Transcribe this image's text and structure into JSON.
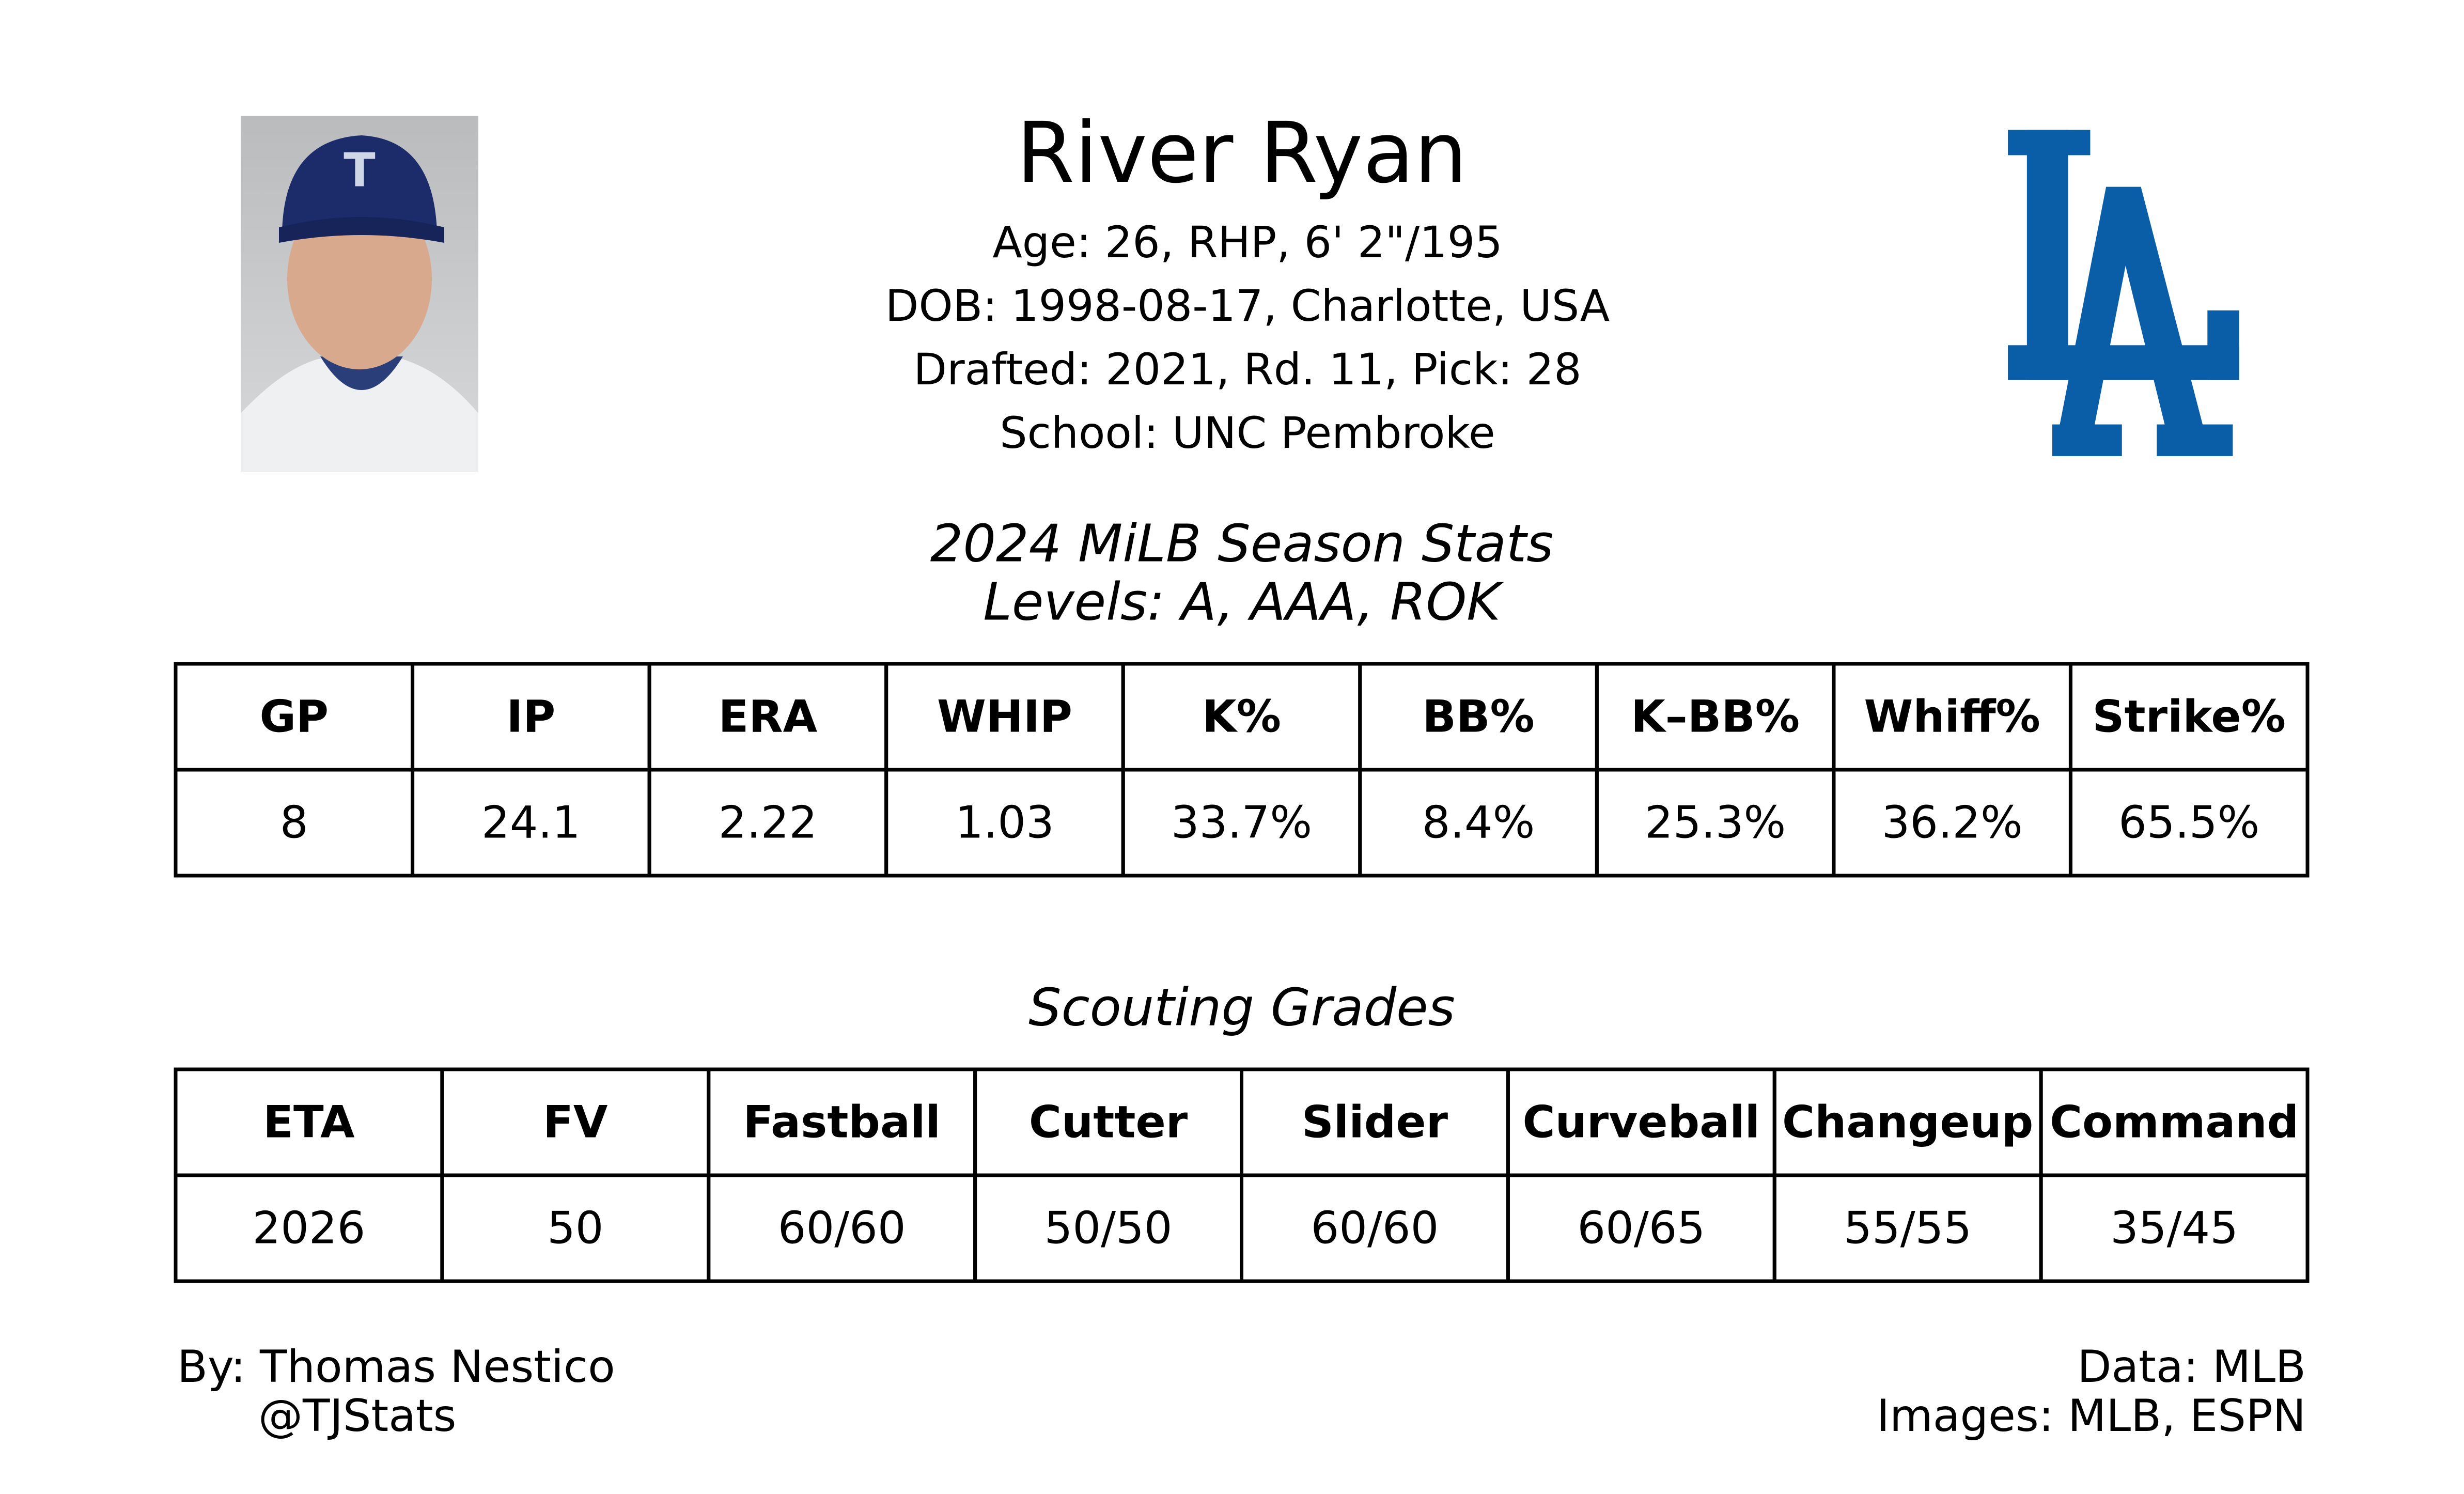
{
  "header": {
    "name": "River Ryan",
    "details": [
      "Age: 26, RHP, 6' 2\"/195",
      "DOB: 1998-08-17, Charlotte, USA",
      "Drafted: 2021, Rd. 11, Pick: 28",
      "School: UNC Pembroke"
    ]
  },
  "season_stats": {
    "title": "2024 MiLB Season Stats",
    "subtitle": "Levels: A, AAA, ROK",
    "table": {
      "columns": [
        "GP",
        "IP",
        "ERA",
        "WHIP",
        "K%",
        "BB%",
        "K–BB%",
        "Whiff%",
        "Strike%"
      ],
      "rows": [
        [
          "8",
          "24.1",
          "2.22",
          "1.03",
          "33.7%",
          "8.4%",
          "25.3%",
          "36.2%",
          "65.5%"
        ]
      ]
    }
  },
  "scouting_grades": {
    "title": "Scouting Grades",
    "table": {
      "columns": [
        "ETA",
        "FV",
        "Fastball",
        "Cutter",
        "Slider",
        "Curveball",
        "Changeup",
        "Command"
      ],
      "rows": [
        [
          "2026",
          "50",
          "60/60",
          "50/50",
          "60/60",
          "60/65",
          "55/55",
          "35/45"
        ]
      ]
    }
  },
  "footer": {
    "credit": "By: Thomas Nestico",
    "handle": "@TJStats",
    "data_source": "Data: MLB",
    "images_source": "Images: MLB, ESPN"
  }
}
